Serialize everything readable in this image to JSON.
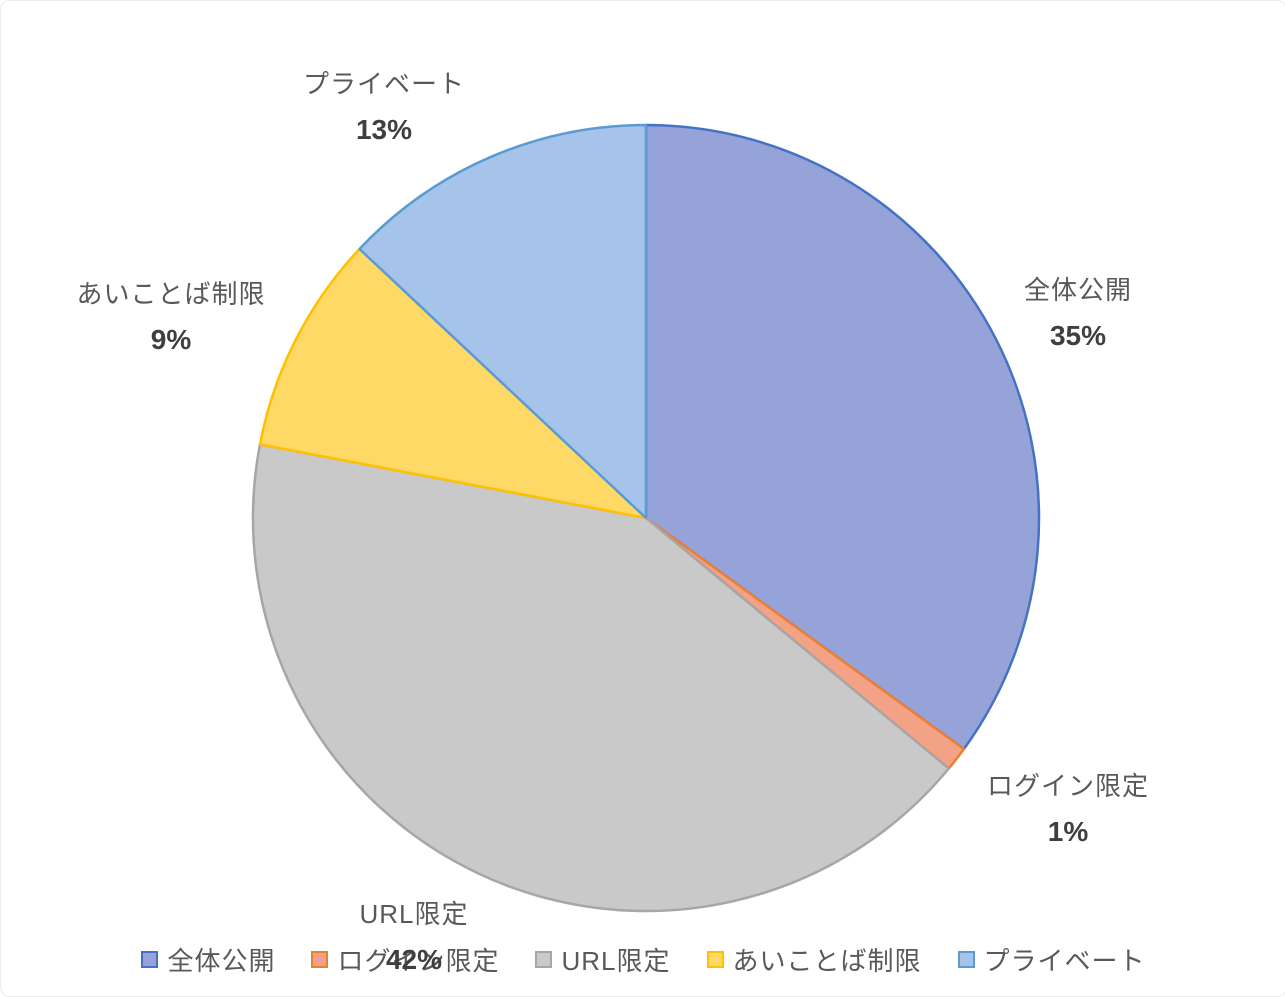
{
  "chart_data": {
    "type": "pie",
    "title": "",
    "start_angle_deg": 0,
    "direction": "clockwise",
    "legend_position": "bottom",
    "label_color": "#595959",
    "background_color": "#ffffff",
    "slices": [
      {
        "label": "全体公開",
        "value": 35,
        "pct_label": "35%",
        "fill": "#96A3D9",
        "border": "#4472C4"
      },
      {
        "label": "ログイン限定",
        "value": 1,
        "pct_label": "1%",
        "fill": "#F4A285",
        "border": "#ED7D31"
      },
      {
        "label": "URL限定",
        "value": 42,
        "pct_label": "42%",
        "fill": "#C9C9C9",
        "border": "#A6A6A6"
      },
      {
        "label": "あいことば制限",
        "value": 9,
        "pct_label": "9%",
        "fill": "#FFD966",
        "border": "#FFC000"
      },
      {
        "label": "プライベート",
        "value": 13,
        "pct_label": "13%",
        "fill": "#A6C4E9",
        "border": "#5B9BD5"
      }
    ]
  }
}
